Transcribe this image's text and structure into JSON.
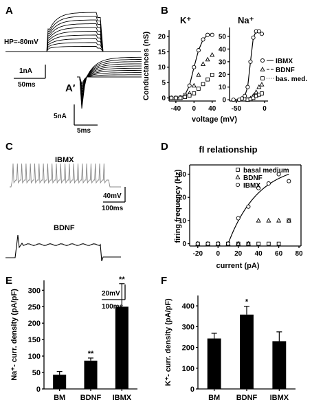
{
  "panels": {
    "A": {
      "letter": "A",
      "holding": "HP=-80mV",
      "scale_current": "1nA",
      "scale_time": "50ms"
    },
    "A_prime": {
      "letter": "A′",
      "scale_current": "5nA",
      "scale_time": "5ms"
    },
    "B": {
      "letter": "B",
      "title_k": "K⁺",
      "title_na": "Na⁺"
    },
    "C": {
      "letter": "C",
      "trace1": "IBMX",
      "trace2": "BDNF",
      "scale1_v": "40mV",
      "scale1_t": "100ms",
      "scale2_v": "20mV",
      "scale2_t": "100ms"
    },
    "D": {
      "letter": "D"
    },
    "E": {
      "letter": "E"
    },
    "F": {
      "letter": "F"
    }
  },
  "chart_data": [
    {
      "panel": "B-K",
      "type": "scatter",
      "title": "K⁺",
      "xlabel": "voltage (mV)",
      "ylabel": "Conductances (nS)",
      "xlim": [
        -55,
        48
      ],
      "ylim": [
        -1,
        22
      ],
      "xticks": [
        -40,
        0,
        40
      ],
      "yticks": [
        0,
        5,
        10,
        15,
        20
      ],
      "series": [
        {
          "name": "IBMX",
          "marker": "circle",
          "x": [
            -50,
            -40,
            -30,
            -20,
            -10,
            0,
            10,
            20,
            30,
            40
          ],
          "y": [
            0,
            0,
            0.2,
            1,
            4,
            10,
            15.5,
            19,
            20.5,
            20.5
          ]
        },
        {
          "name": "BDNF",
          "marker": "triangle",
          "x": [
            -50,
            -40,
            -30,
            -20,
            -10,
            0,
            10,
            20,
            30,
            40
          ],
          "y": [
            0,
            0,
            0,
            0.5,
            1.5,
            4,
            7.5,
            11,
            12.5,
            14
          ]
        },
        {
          "name": "bas. med.",
          "marker": "square",
          "x": [
            -50,
            -40,
            -30,
            -20,
            -10,
            0,
            10,
            20,
            30,
            40
          ],
          "y": [
            0,
            0,
            0,
            0.3,
            0.8,
            1.5,
            3,
            4.5,
            6,
            7.5
          ]
        }
      ]
    },
    {
      "panel": "B-Na",
      "type": "scatter",
      "title": "Na⁺",
      "xlim": [
        -62,
        6
      ],
      "ylim": [
        -1,
        57
      ],
      "xticks": [
        -50,
        0
      ],
      "yticks": [
        0,
        10,
        20,
        30,
        40,
        50
      ],
      "series": [
        {
          "name": "IBMX",
          "marker": "circle",
          "x": [
            -55,
            -45,
            -40,
            -35,
            -30,
            -25,
            -20,
            -15,
            -10,
            -5
          ],
          "y": [
            0,
            0,
            1,
            3,
            10,
            30,
            49,
            54,
            54,
            52
          ]
        },
        {
          "name": "BDNF",
          "marker": "triangle",
          "x": [
            -30,
            -25,
            -20,
            -15,
            -10,
            -5
          ],
          "y": [
            0,
            1,
            3,
            6,
            10,
            12
          ]
        },
        {
          "name": "bas. med.",
          "marker": "square",
          "x": [
            -30,
            -25,
            -20,
            -15,
            -10,
            -5
          ],
          "y": [
            0,
            0.5,
            1.5,
            3,
            4,
            5
          ]
        }
      ],
      "legend": [
        "IBMX",
        "BDNF",
        "bas. med."
      ]
    },
    {
      "panel": "D",
      "type": "scatter",
      "title": "fI relationship",
      "xlabel": "current (pA)",
      "ylabel": "firing frequency (Hz)",
      "xlim": [
        -28,
        82
      ],
      "ylim": [
        -1,
        34
      ],
      "xticks": [
        -20,
        0,
        20,
        40,
        60,
        80
      ],
      "yticks": [
        0,
        10,
        20,
        30
      ],
      "series": [
        {
          "name": "basal medium",
          "marker": "square",
          "x": [
            -20,
            -10,
            0,
            10,
            20,
            30,
            40,
            50,
            60,
            70
          ],
          "y": [
            0,
            0,
            0,
            0,
            0,
            0,
            0,
            0,
            0,
            10
          ]
        },
        {
          "name": "BDNF",
          "marker": "triangle",
          "x": [
            -20,
            -10,
            0,
            10,
            20,
            30,
            40,
            50,
            60,
            70
          ],
          "y": [
            0,
            0,
            0,
            0,
            0,
            0,
            10,
            10,
            10,
            10
          ]
        },
        {
          "name": "IBMX",
          "marker": "circle",
          "x": [
            -20,
            -10,
            0,
            10,
            20,
            30,
            40,
            50,
            60,
            70
          ],
          "y": [
            0,
            0,
            0,
            0,
            11,
            16,
            24,
            26,
            30,
            27
          ]
        }
      ]
    },
    {
      "panel": "E",
      "type": "bar",
      "ylabel": "Na⁺- curr. density (pA/pF)",
      "categories": [
        "BM",
        "BDNF",
        "IBMX"
      ],
      "values": [
        43,
        86,
        250
      ],
      "errors": [
        10,
        8,
        70
      ],
      "significance": [
        "",
        "**",
        "**"
      ],
      "ylim": [
        0,
        330
      ],
      "yticks": [
        0,
        50,
        100,
        150,
        200,
        250,
        300
      ]
    },
    {
      "panel": "F",
      "type": "bar",
      "ylabel": "K⁺- curr. density (pA/pF)",
      "categories": [
        "BM",
        "BDNF",
        "IBMX"
      ],
      "values": [
        243,
        358,
        230
      ],
      "errors": [
        25,
        40,
        45
      ],
      "significance": [
        "",
        "*",
        ""
      ],
      "ylim": [
        0,
        450
      ],
      "yticks": [
        0,
        100,
        200,
        300,
        400
      ]
    }
  ]
}
